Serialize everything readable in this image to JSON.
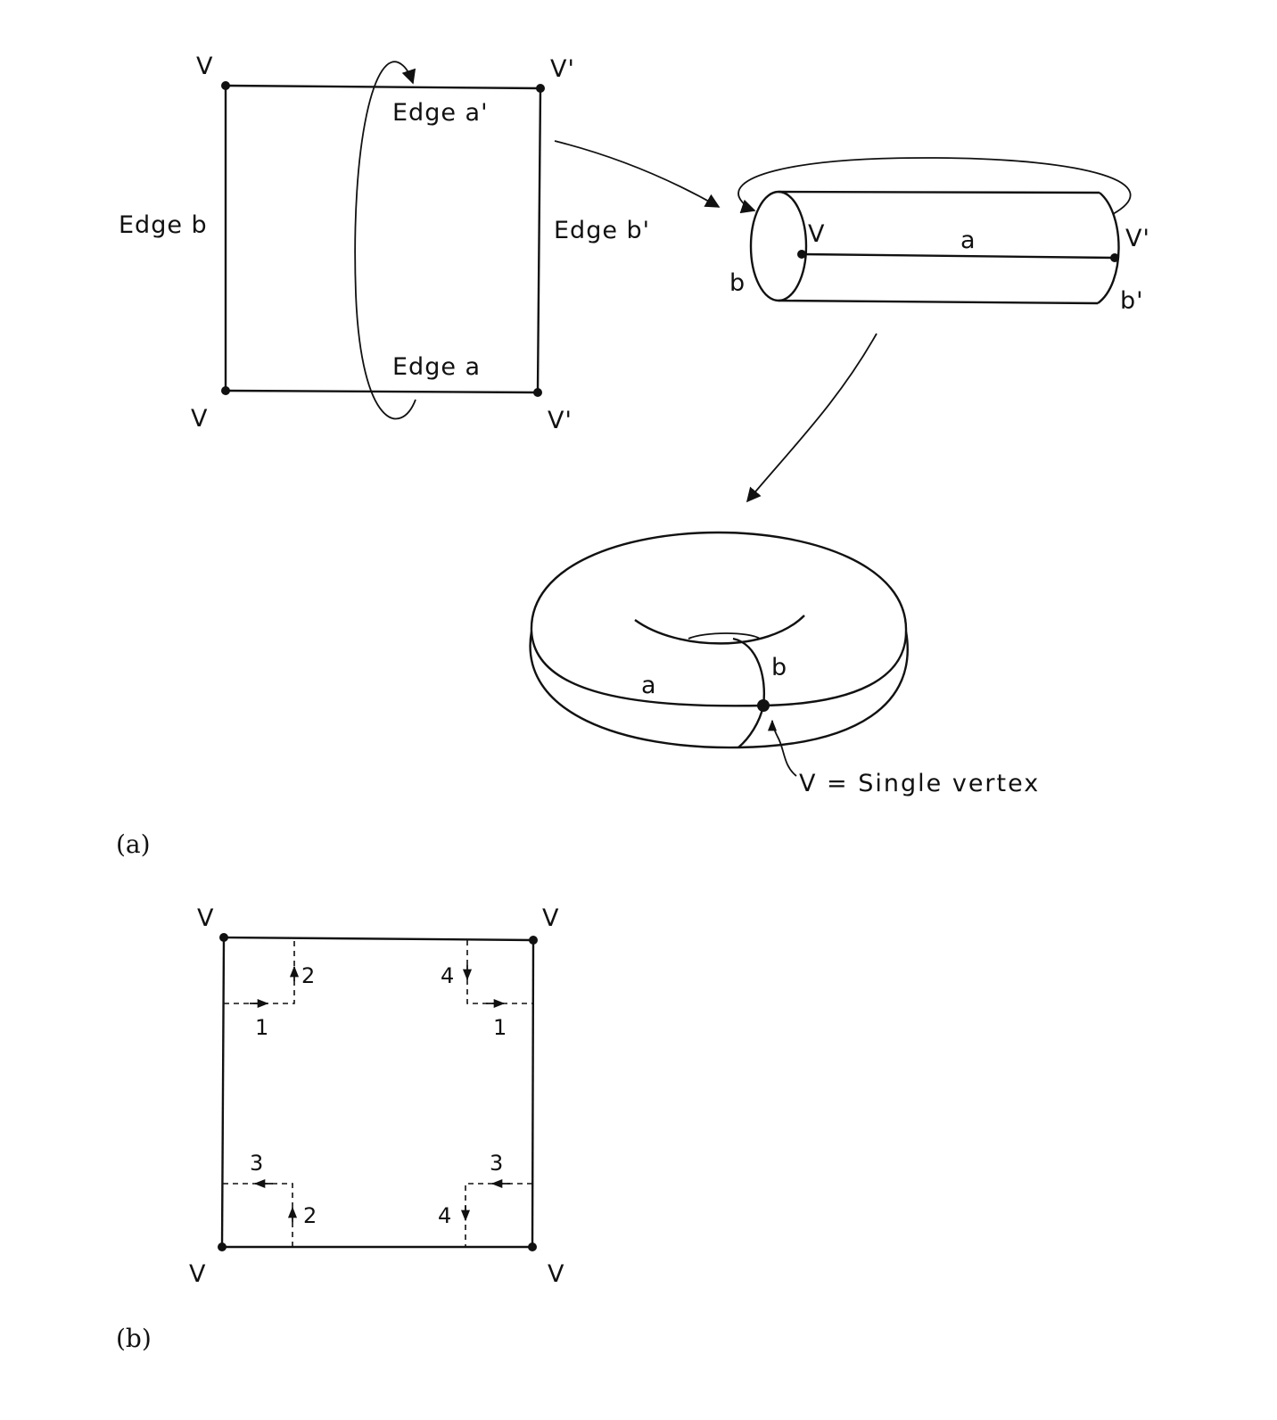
{
  "panel_a": {
    "caption": "(a)",
    "square": {
      "v_top_left": "V",
      "v_top_right": "V'",
      "v_bottom_left": "V",
      "v_bottom_right": "V'",
      "edge_top": "Edge a'",
      "edge_bottom": "Edge a",
      "edge_left": "Edge b",
      "edge_right": "Edge b'"
    },
    "cylinder": {
      "v_left": "V",
      "v_right": "V'",
      "edge_a": "a",
      "edge_b": "b",
      "edge_b_prime": "b'"
    },
    "torus": {
      "edge_a": "a",
      "edge_b": "b",
      "vertex_note": "V = Single vertex"
    }
  },
  "panel_b": {
    "caption": "(b)",
    "corners": {
      "top_left": "V",
      "top_right": "V",
      "bottom_left": "V",
      "bottom_right": "V"
    },
    "path_labels": {
      "tl_up": "2",
      "tl_right": "1",
      "tr_down": "4",
      "tr_right": "1",
      "bl_left": "3",
      "bl_up": "2",
      "br_left": "3",
      "br_down": "4"
    }
  }
}
